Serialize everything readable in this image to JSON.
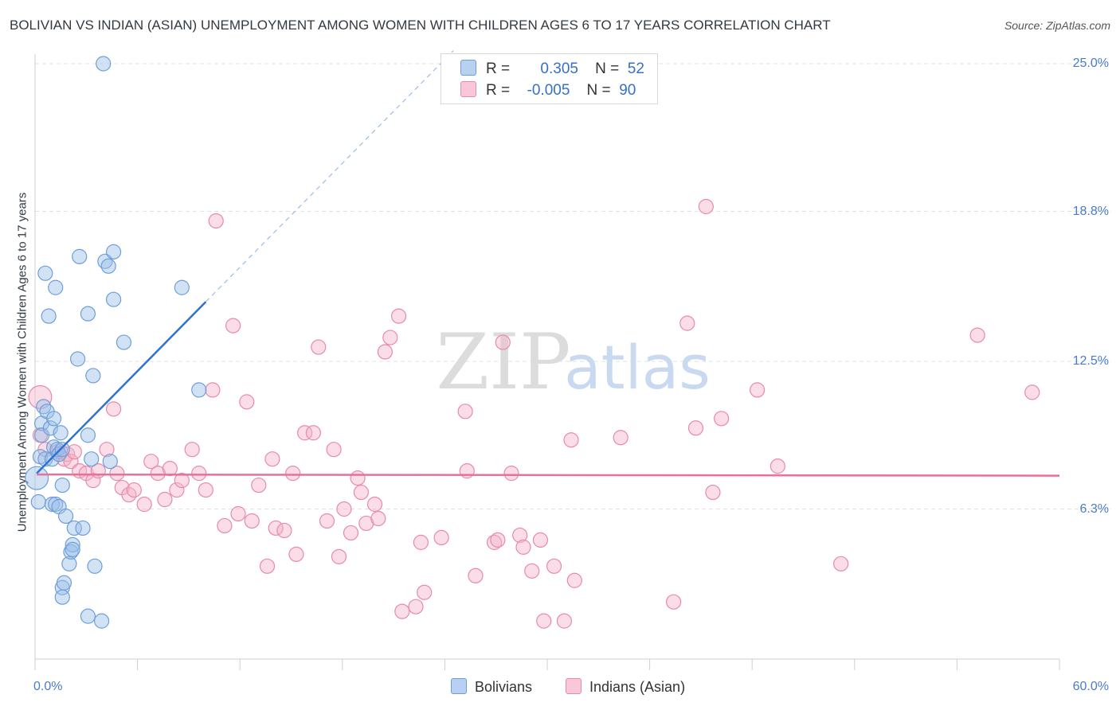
{
  "header": {
    "title": "BOLIVIAN VS INDIAN (ASIAN) UNEMPLOYMENT AMONG WOMEN WITH CHILDREN AGES 6 TO 17 YEARS CORRELATION CHART",
    "source": "Source: ZipAtlas.com"
  },
  "watermark": {
    "zip": "ZIP",
    "atlas": "atlas"
  },
  "legend": {
    "r_label": "R =",
    "n_label": "N =",
    "rows": [
      {
        "r": "0.305",
        "n": "52"
      },
      {
        "r": "-0.005",
        "n": "90"
      }
    ]
  },
  "bottom_legend": {
    "bolivians": "Bolivians",
    "indians": "Indians (Asian)"
  },
  "colors": {
    "blue": "#9cbfe8",
    "blue_stroke": "#6e9ed9",
    "blue_line": "#2f72d0",
    "pink": "#f3b3c8",
    "pink_stroke": "#e88aa9",
    "pink_line": "#e8709a",
    "tick_text": "#4a7cc9"
  },
  "chart_data": {
    "type": "scatter",
    "title": "BOLIVIAN VS INDIAN (ASIAN) UNEMPLOYMENT AMONG WOMEN WITH CHILDREN AGES 6 TO 17 YEARS CORRELATION CHART",
    "xlabel": "",
    "ylabel": "Unemployment Among Women with Children Ages 6 to 17 years",
    "xlim": [
      0,
      60
    ],
    "ylim": [
      0,
      25
    ],
    "x_tick_labels": [
      "0.0%",
      "60.0%"
    ],
    "y_tick_labels": [
      "25.0%",
      "18.8%",
      "12.5%",
      "6.3%"
    ],
    "y_ticks": [
      25.0,
      18.8,
      12.5,
      6.3
    ],
    "grid": true,
    "legend_position": "top-center",
    "series": [
      {
        "name": "Bolivians",
        "color": "#9cbfe8",
        "r": 0.305,
        "n": 52,
        "trend": {
          "x0": 0.1,
          "y0": 7.8,
          "x1": 10.0,
          "y1": 15.0,
          "dash_to_x": 24.5
        },
        "points": [
          [
            0.1,
            7.6,
            1.6
          ],
          [
            0.2,
            6.6,
            1.0
          ],
          [
            0.3,
            8.5,
            1.0
          ],
          [
            0.4,
            9.9,
            1.0
          ],
          [
            0.4,
            9.4,
            1.0
          ],
          [
            0.5,
            10.6,
            1.0
          ],
          [
            0.6,
            8.4,
            1.0
          ],
          [
            0.6,
            16.2,
            1.0
          ],
          [
            0.7,
            10.4,
            1.0
          ],
          [
            0.8,
            14.4,
            1.0
          ],
          [
            0.9,
            9.7,
            1.0
          ],
          [
            1.0,
            8.4,
            1.0
          ],
          [
            1.0,
            6.5,
            1.0
          ],
          [
            1.1,
            8.9,
            1.0
          ],
          [
            1.1,
            10.1,
            1.0
          ],
          [
            1.2,
            15.6,
            1.0
          ],
          [
            1.2,
            6.5,
            1.0
          ],
          [
            1.3,
            8.8,
            1.0
          ],
          [
            1.4,
            8.6,
            1.0
          ],
          [
            1.4,
            6.4,
            1.0
          ],
          [
            1.5,
            9.5,
            1.0
          ],
          [
            1.6,
            8.8,
            1.0
          ],
          [
            1.6,
            7.3,
            1.0
          ],
          [
            1.6,
            3.0,
            1.0
          ],
          [
            1.6,
            2.6,
            1.0
          ],
          [
            1.7,
            3.2,
            1.0
          ],
          [
            1.8,
            6.0,
            1.0
          ],
          [
            2.0,
            4.0,
            1.0
          ],
          [
            2.1,
            4.5,
            1.0
          ],
          [
            2.2,
            4.8,
            1.0
          ],
          [
            2.2,
            4.6,
            1.0
          ],
          [
            2.3,
            5.5,
            1.0
          ],
          [
            2.5,
            12.6,
            1.0
          ],
          [
            2.6,
            16.9,
            1.0
          ],
          [
            2.8,
            5.5,
            1.0
          ],
          [
            3.1,
            14.5,
            1.0
          ],
          [
            3.1,
            9.4,
            1.0
          ],
          [
            3.1,
            1.8,
            1.0
          ],
          [
            3.3,
            8.4,
            1.0
          ],
          [
            3.4,
            11.9,
            1.0
          ],
          [
            3.5,
            3.9,
            1.0
          ],
          [
            3.9,
            1.6,
            1.0
          ],
          [
            4.0,
            25.0,
            1.0
          ],
          [
            4.1,
            16.7,
            1.0
          ],
          [
            4.3,
            16.5,
            1.0
          ],
          [
            4.4,
            8.3,
            1.0
          ],
          [
            4.6,
            15.1,
            1.0
          ],
          [
            4.6,
            17.1,
            1.0
          ],
          [
            5.2,
            13.3,
            1.0
          ],
          [
            8.6,
            15.6,
            1.0
          ],
          [
            9.6,
            11.3,
            1.0
          ]
        ]
      },
      {
        "name": "Indians (Asian)",
        "color": "#f3b3c8",
        "r": -0.005,
        "n": 90,
        "trend": {
          "x0": 0.1,
          "y0": 7.75,
          "x1": 60.0,
          "y1": 7.7
        },
        "points": [
          [
            0.3,
            11.0,
            1.6
          ],
          [
            0.3,
            9.4,
            1.0
          ],
          [
            0.6,
            8.8,
            1.0
          ],
          [
            1.3,
            8.7,
            1.0
          ],
          [
            1.5,
            8.7,
            1.0
          ],
          [
            1.7,
            8.4,
            1.0
          ],
          [
            1.9,
            8.6,
            1.0
          ],
          [
            2.1,
            8.3,
            1.0
          ],
          [
            2.3,
            8.7,
            1.0
          ],
          [
            2.6,
            7.9,
            1.0
          ],
          [
            3.0,
            7.8,
            1.0
          ],
          [
            3.4,
            7.5,
            1.0
          ],
          [
            3.7,
            7.9,
            1.0
          ],
          [
            4.2,
            8.8,
            1.0
          ],
          [
            4.6,
            10.5,
            1.0
          ],
          [
            4.8,
            7.8,
            1.0
          ],
          [
            5.1,
            7.2,
            1.0
          ],
          [
            5.5,
            6.9,
            1.0
          ],
          [
            5.8,
            7.1,
            1.0
          ],
          [
            6.4,
            6.5,
            1.0
          ],
          [
            6.8,
            8.3,
            1.0
          ],
          [
            7.2,
            7.8,
            1.0
          ],
          [
            7.6,
            6.7,
            1.0
          ],
          [
            7.9,
            8.0,
            1.0
          ],
          [
            8.3,
            7.1,
            1.0
          ],
          [
            8.6,
            7.5,
            1.0
          ],
          [
            9.2,
            8.8,
            1.0
          ],
          [
            9.6,
            7.8,
            1.0
          ],
          [
            10.0,
            7.1,
            1.0
          ],
          [
            10.4,
            11.3,
            1.0
          ],
          [
            10.6,
            18.4,
            1.0
          ],
          [
            11.1,
            5.6,
            1.0
          ],
          [
            11.6,
            14.0,
            1.0
          ],
          [
            11.9,
            6.1,
            1.0
          ],
          [
            12.4,
            10.8,
            1.0
          ],
          [
            12.7,
            5.8,
            1.0
          ],
          [
            13.1,
            7.3,
            1.0
          ],
          [
            13.6,
            3.9,
            1.0
          ],
          [
            13.9,
            8.4,
            1.0
          ],
          [
            14.1,
            5.5,
            1.0
          ],
          [
            14.6,
            5.4,
            1.0
          ],
          [
            15.1,
            7.8,
            1.0
          ],
          [
            15.3,
            4.4,
            1.0
          ],
          [
            15.8,
            9.5,
            1.0
          ],
          [
            16.3,
            9.5,
            1.0
          ],
          [
            16.6,
            13.1,
            1.0
          ],
          [
            17.1,
            5.8,
            1.0
          ],
          [
            17.5,
            8.8,
            1.0
          ],
          [
            17.8,
            4.3,
            1.0
          ],
          [
            18.1,
            6.3,
            1.0
          ],
          [
            18.5,
            5.3,
            1.0
          ],
          [
            18.9,
            7.6,
            1.0
          ],
          [
            19.1,
            7.0,
            1.0
          ],
          [
            19.4,
            5.7,
            1.0
          ],
          [
            19.9,
            6.5,
            1.0
          ],
          [
            20.1,
            5.9,
            1.0
          ],
          [
            20.5,
            12.9,
            1.0
          ],
          [
            20.8,
            13.5,
            1.0
          ],
          [
            21.3,
            14.4,
            1.0
          ],
          [
            21.5,
            2.0,
            1.0
          ],
          [
            22.3,
            2.2,
            1.0
          ],
          [
            22.6,
            4.9,
            1.0
          ],
          [
            22.8,
            2.8,
            1.0
          ],
          [
            23.8,
            5.1,
            1.0
          ],
          [
            25.2,
            10.4,
            1.0
          ],
          [
            25.3,
            7.9,
            1.0
          ],
          [
            25.8,
            3.5,
            1.0
          ],
          [
            26.9,
            4.9,
            1.0
          ],
          [
            27.1,
            5.0,
            1.0
          ],
          [
            27.4,
            13.3,
            1.0
          ],
          [
            27.9,
            7.8,
            1.0
          ],
          [
            28.4,
            5.2,
            1.0
          ],
          [
            28.6,
            4.7,
            1.0
          ],
          [
            29.1,
            3.7,
            1.0
          ],
          [
            29.6,
            5.0,
            1.0
          ],
          [
            29.8,
            1.6,
            1.0
          ],
          [
            30.4,
            3.9,
            1.0
          ],
          [
            31.0,
            1.6,
            1.0
          ],
          [
            31.4,
            9.2,
            1.0
          ],
          [
            31.6,
            3.3,
            1.0
          ],
          [
            34.3,
            9.3,
            1.0
          ],
          [
            37.4,
            2.4,
            1.0
          ],
          [
            38.2,
            14.1,
            1.0
          ],
          [
            38.7,
            9.7,
            1.0
          ],
          [
            39.3,
            19.0,
            1.0
          ],
          [
            39.7,
            7.0,
            1.0
          ],
          [
            40.2,
            10.1,
            1.0
          ],
          [
            42.3,
            11.3,
            1.0
          ],
          [
            43.5,
            8.1,
            1.0
          ],
          [
            47.2,
            4.0,
            1.0
          ],
          [
            55.2,
            13.6,
            1.0
          ],
          [
            58.4,
            11.2,
            1.0
          ]
        ]
      }
    ]
  }
}
